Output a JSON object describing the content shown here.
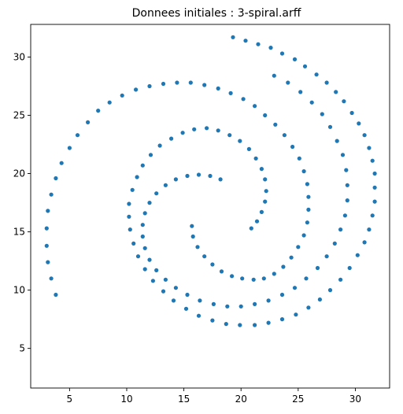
{
  "chart_data": {
    "type": "scatter",
    "title": "Donnees initiales : 3-spiral.arff",
    "xlabel": "",
    "ylabel": "",
    "xlim": [
      1.6,
      33.0
    ],
    "ylim": [
      1.6,
      32.8
    ],
    "xticks": [
      5,
      10,
      15,
      20,
      25,
      30
    ],
    "yticks": [
      5,
      10,
      15,
      20,
      25,
      30
    ],
    "grid": false,
    "marker_color": "#1f77b4",
    "series": [
      {
        "points": [
          [
            19.3,
            31.7
          ],
          [
            20.4,
            31.4
          ],
          [
            21.5,
            31.1
          ],
          [
            22.6,
            30.8
          ],
          [
            23.6,
            30.3
          ],
          [
            24.7,
            29.8
          ],
          [
            25.6,
            29.2
          ],
          [
            26.6,
            28.5
          ],
          [
            27.5,
            27.8
          ],
          [
            28.3,
            27.0
          ],
          [
            29.0,
            26.2
          ],
          [
            29.7,
            25.2
          ],
          [
            30.3,
            24.3
          ],
          [
            30.8,
            23.3
          ],
          [
            31.2,
            22.2
          ],
          [
            31.5,
            21.1
          ],
          [
            31.7,
            20.0
          ],
          [
            31.7,
            18.8
          ],
          [
            31.7,
            17.6
          ],
          [
            31.5,
            16.4
          ],
          [
            31.2,
            15.2
          ],
          [
            30.8,
            14.1
          ],
          [
            30.2,
            13.0
          ],
          [
            29.5,
            11.9
          ],
          [
            28.7,
            10.9
          ],
          [
            27.8,
            10.0
          ],
          [
            26.9,
            9.2
          ],
          [
            25.9,
            8.5
          ],
          [
            24.8,
            7.9
          ],
          [
            23.6,
            7.5
          ],
          [
            22.4,
            7.2
          ],
          [
            21.2,
            7.0
          ],
          [
            19.9,
            7.0
          ],
          [
            18.7,
            7.1
          ],
          [
            17.5,
            7.4
          ],
          [
            16.3,
            7.8
          ],
          [
            15.2,
            8.4
          ],
          [
            14.1,
            9.1
          ],
          [
            13.2,
            9.9
          ],
          [
            12.3,
            10.8
          ],
          [
            11.6,
            11.8
          ],
          [
            11.0,
            12.9
          ],
          [
            10.6,
            14.0
          ],
          [
            10.3,
            15.2
          ],
          [
            10.2,
            16.3
          ],
          [
            10.2,
            17.4
          ],
          [
            10.5,
            18.6
          ],
          [
            10.9,
            19.7
          ],
          [
            11.4,
            20.7
          ],
          [
            12.1,
            21.6
          ],
          [
            12.9,
            22.4
          ],
          [
            13.9,
            23.0
          ],
          [
            14.9,
            23.5
          ],
          [
            15.9,
            23.8
          ],
          [
            17.0,
            23.9
          ],
          [
            18.0,
            23.7
          ],
          [
            19.0,
            23.3
          ],
          [
            19.9,
            22.8
          ],
          [
            20.7,
            22.1
          ],
          [
            21.3,
            21.3
          ],
          [
            21.8,
            20.4
          ],
          [
            22.1,
            19.5
          ],
          [
            22.2,
            18.5
          ],
          [
            22.1,
            17.6
          ],
          [
            21.8,
            16.7
          ],
          [
            21.4,
            15.9
          ],
          [
            20.9,
            15.3
          ]
        ]
      },
      {
        "points": [
          [
            3.8,
            9.6
          ],
          [
            3.4,
            11.0
          ],
          [
            3.1,
            12.4
          ],
          [
            3.0,
            13.8
          ],
          [
            3.0,
            15.3
          ],
          [
            3.1,
            16.8
          ],
          [
            3.4,
            18.2
          ],
          [
            3.8,
            19.6
          ],
          [
            4.3,
            20.9
          ],
          [
            5.0,
            22.2
          ],
          [
            5.7,
            23.3
          ],
          [
            6.6,
            24.4
          ],
          [
            7.5,
            25.4
          ],
          [
            8.5,
            26.1
          ],
          [
            9.6,
            26.7
          ],
          [
            10.8,
            27.2
          ],
          [
            12.0,
            27.5
          ],
          [
            13.2,
            27.7
          ],
          [
            14.4,
            27.8
          ],
          [
            15.6,
            27.8
          ],
          [
            16.8,
            27.6
          ],
          [
            18.0,
            27.3
          ],
          [
            19.1,
            26.9
          ],
          [
            20.2,
            26.4
          ],
          [
            21.2,
            25.8
          ],
          [
            22.1,
            25.0
          ],
          [
            23.0,
            24.2
          ],
          [
            23.8,
            23.3
          ],
          [
            24.5,
            22.3
          ],
          [
            25.1,
            21.3
          ],
          [
            25.5,
            20.2
          ],
          [
            25.8,
            19.1
          ],
          [
            25.9,
            18.0
          ],
          [
            25.9,
            16.9
          ],
          [
            25.8,
            15.8
          ],
          [
            25.5,
            14.7
          ],
          [
            25.0,
            13.7
          ],
          [
            24.4,
            12.8
          ],
          [
            23.7,
            12.0
          ],
          [
            22.9,
            11.4
          ],
          [
            22.0,
            11.0
          ],
          [
            21.1,
            10.9
          ],
          [
            20.1,
            11.0
          ],
          [
            19.2,
            11.2
          ],
          [
            18.3,
            11.6
          ],
          [
            17.5,
            12.2
          ],
          [
            16.8,
            12.9
          ],
          [
            16.2,
            13.7
          ],
          [
            15.8,
            14.6
          ],
          [
            15.7,
            15.5
          ]
        ]
      },
      {
        "points": [
          [
            18.2,
            19.5
          ],
          [
            17.3,
            19.8
          ],
          [
            16.3,
            19.9
          ],
          [
            15.3,
            19.8
          ],
          [
            14.3,
            19.5
          ],
          [
            13.4,
            19.0
          ],
          [
            12.6,
            18.3
          ],
          [
            12.0,
            17.5
          ],
          [
            11.6,
            16.6
          ],
          [
            11.4,
            15.6
          ],
          [
            11.4,
            14.6
          ],
          [
            11.6,
            13.6
          ],
          [
            12.0,
            12.6
          ],
          [
            12.6,
            11.7
          ],
          [
            13.4,
            10.9
          ],
          [
            14.3,
            10.2
          ],
          [
            15.3,
            9.6
          ],
          [
            16.4,
            9.1
          ],
          [
            17.6,
            8.8
          ],
          [
            18.8,
            8.6
          ],
          [
            20.0,
            8.6
          ],
          [
            21.2,
            8.8
          ],
          [
            22.4,
            9.1
          ],
          [
            23.6,
            9.6
          ],
          [
            24.7,
            10.2
          ],
          [
            25.7,
            11.0
          ],
          [
            26.7,
            11.9
          ],
          [
            27.5,
            12.9
          ],
          [
            28.2,
            14.0
          ],
          [
            28.7,
            15.2
          ],
          [
            29.1,
            16.4
          ],
          [
            29.3,
            17.7
          ],
          [
            29.3,
            19.0
          ],
          [
            29.2,
            20.3
          ],
          [
            28.9,
            21.6
          ],
          [
            28.4,
            22.8
          ],
          [
            27.8,
            24.0
          ],
          [
            27.1,
            25.1
          ],
          [
            26.2,
            26.1
          ],
          [
            25.2,
            27.0
          ],
          [
            24.1,
            27.8
          ],
          [
            22.9,
            28.4
          ]
        ]
      }
    ]
  }
}
